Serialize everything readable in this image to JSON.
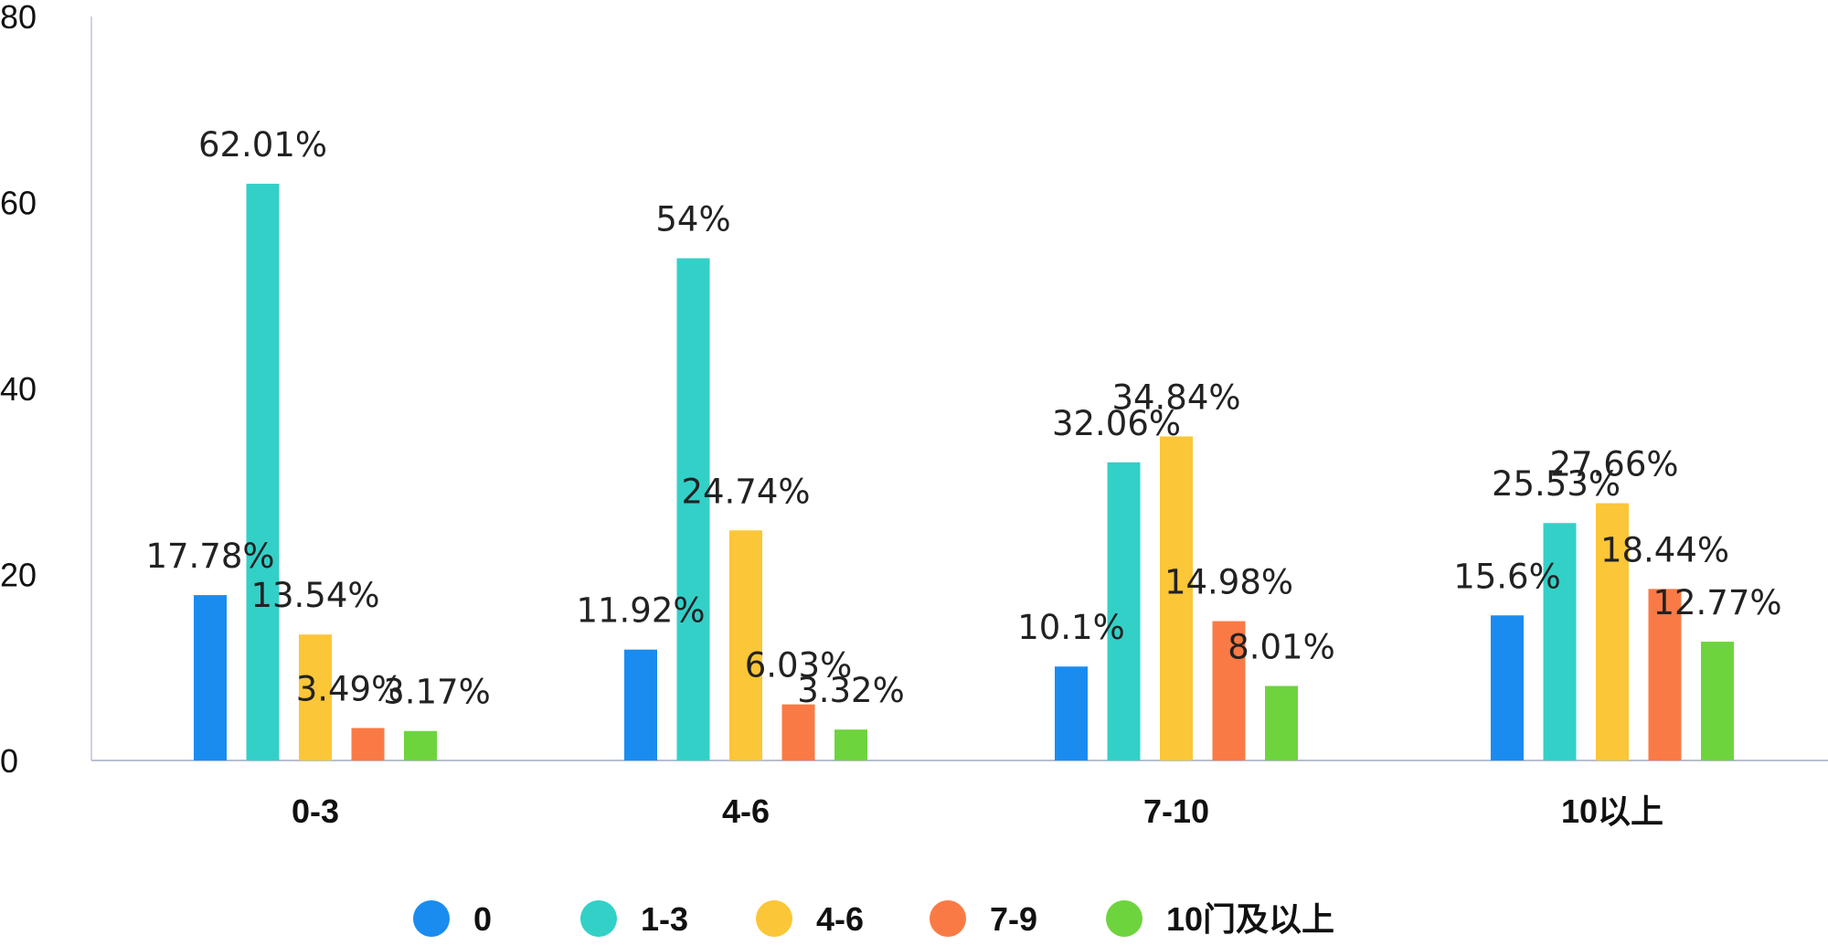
{
  "chart_data": {
    "type": "bar",
    "title": "",
    "xlabel": "",
    "ylabel": "",
    "ylim": [
      0,
      80
    ],
    "yticks": [
      "0",
      "20",
      "40",
      "60",
      "80"
    ],
    "grid": false,
    "legend_position": "bottom",
    "categories": [
      "0-3",
      "4-6",
      "7-10",
      "10以上"
    ],
    "series": [
      {
        "name": "0",
        "color": "#1a8cf0",
        "values": [
          17.78,
          11.92,
          10.1,
          15.6
        ],
        "labels": [
          "17.78%",
          "11.92%",
          "10.1%",
          "15.6%"
        ]
      },
      {
        "name": "1-3",
        "color": "#33d0c8",
        "values": [
          62.01,
          54,
          32.06,
          25.53
        ],
        "labels": [
          "62.01%",
          "54%",
          "32.06%",
          "25.53%"
        ]
      },
      {
        "name": "4-6",
        "color": "#fbc637",
        "values": [
          13.54,
          24.74,
          34.84,
          27.66
        ],
        "labels": [
          "13.54%",
          "24.74%",
          "34.84%",
          "27.66%"
        ]
      },
      {
        "name": "7-9",
        "color": "#fa7a45",
        "values": [
          3.49,
          6.03,
          14.98,
          18.44
        ],
        "labels": [
          "3.49%",
          "6.03%",
          "14.98%",
          "18.44%"
        ]
      },
      {
        "name": "10门及以上",
        "color": "#6dd43e",
        "values": [
          3.17,
          3.32,
          8.01,
          12.77
        ],
        "labels": [
          "3.17%",
          "3.32%",
          "8.01%",
          "12.77%"
        ]
      }
    ]
  }
}
